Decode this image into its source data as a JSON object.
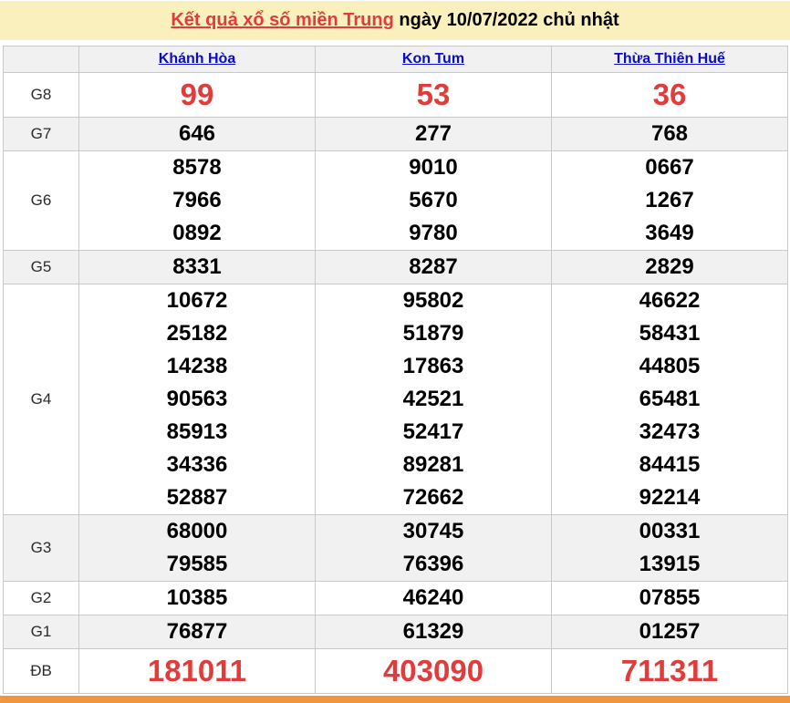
{
  "title": {
    "link": "Kết quả xổ số miền Trung",
    "rest": " ngày 10/07/2022 chủ nhật"
  },
  "table": {
    "corner": "",
    "provinces": [
      "Khánh Hòa",
      "Kon Tum",
      "Thừa Thiên Huế"
    ],
    "prizes": [
      {
        "label": "G8",
        "highlight": true,
        "values": [
          [
            "99"
          ],
          [
            "53"
          ],
          [
            "36"
          ]
        ]
      },
      {
        "label": "G7",
        "highlight": false,
        "values": [
          [
            "646"
          ],
          [
            "277"
          ],
          [
            "768"
          ]
        ]
      },
      {
        "label": "G6",
        "highlight": false,
        "values": [
          [
            "8578",
            "7966",
            "0892"
          ],
          [
            "9010",
            "5670",
            "9780"
          ],
          [
            "0667",
            "1267",
            "3649"
          ]
        ]
      },
      {
        "label": "G5",
        "highlight": false,
        "values": [
          [
            "8331"
          ],
          [
            "8287"
          ],
          [
            "2829"
          ]
        ]
      },
      {
        "label": "G4",
        "highlight": false,
        "values": [
          [
            "10672",
            "25182",
            "14238",
            "90563",
            "85913",
            "34336",
            "52887"
          ],
          [
            "95802",
            "51879",
            "17863",
            "42521",
            "52417",
            "89281",
            "72662"
          ],
          [
            "46622",
            "58431",
            "44805",
            "65481",
            "32473",
            "84415",
            "92214"
          ]
        ]
      },
      {
        "label": "G3",
        "highlight": false,
        "values": [
          [
            "68000",
            "79585"
          ],
          [
            "30745",
            "76396"
          ],
          [
            "00331",
            "13915"
          ]
        ]
      },
      {
        "label": "G2",
        "highlight": false,
        "values": [
          [
            "10385"
          ],
          [
            "46240"
          ],
          [
            "07855"
          ]
        ]
      },
      {
        "label": "G1",
        "highlight": false,
        "values": [
          [
            "76877"
          ],
          [
            "61329"
          ],
          [
            "01257"
          ]
        ]
      },
      {
        "label": "ĐB",
        "highlight": true,
        "values": [
          [
            "181011"
          ],
          [
            "403090"
          ],
          [
            "711311"
          ]
        ]
      }
    ]
  },
  "colors": {
    "title_bg": "#faf0be",
    "accent_red": "#e23b3b",
    "link_blue": "#0b0bcd",
    "row_alt_bg": "#f1f1f1",
    "border": "#c9c9c9",
    "footer_orange": "#f0963c"
  }
}
